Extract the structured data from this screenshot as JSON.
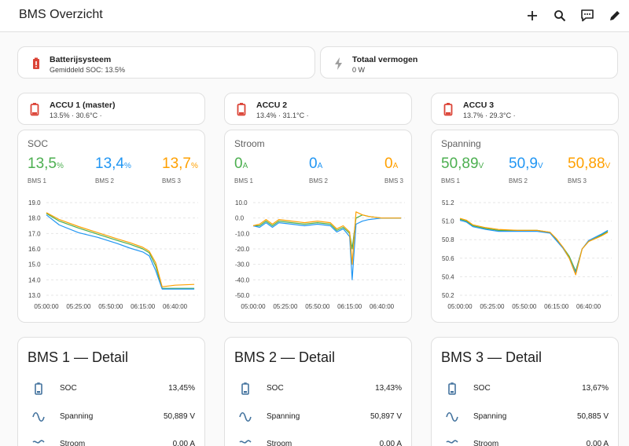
{
  "header": {
    "title": "BMS Overzicht",
    "actions": [
      {
        "icon": "plus-icon"
      },
      {
        "icon": "search-icon"
      },
      {
        "icon": "assist-icon"
      },
      {
        "icon": "pencil-icon"
      }
    ]
  },
  "colors": {
    "bms1": "#4caf50",
    "bms2": "#2196f3",
    "bms3": "#ffa000",
    "battery_icon": "#db4437",
    "detail_icon": "#44739e"
  },
  "summary": [
    {
      "name": "Batterijsysteem",
      "sub": "Gemiddeld SOC: 13.5%",
      "icon": "battery-icon"
    },
    {
      "name": "Totaal vermogen",
      "sub": "0 W",
      "icon": "flash-icon"
    }
  ],
  "accus": [
    {
      "name": "ACCU 1 (master)",
      "sub": "13.5% · 30.6°C ·",
      "icon": "battery-icon"
    },
    {
      "name": "ACCU 2",
      "sub": "13.4% · 31.1°C ·",
      "icon": "battery-icon"
    },
    {
      "name": "ACCU 3",
      "sub": "13.7% · 29.3°C ·",
      "icon": "battery-icon"
    }
  ],
  "charts": [
    {
      "title": "SOC",
      "stats": [
        {
          "value": "13,5",
          "unit": "%",
          "label": "BMS 1"
        },
        {
          "value": "13,4",
          "unit": "%",
          "label": "BMS 2"
        },
        {
          "value": "13,7",
          "unit": "%",
          "label": "BMS 3"
        }
      ]
    },
    {
      "title": "Stroom",
      "stats": [
        {
          "value": "0",
          "unit": "A",
          "label": "BMS 1"
        },
        {
          "value": "0",
          "unit": "A",
          "label": "BMS 2"
        },
        {
          "value": "0",
          "unit": "A",
          "label": "BMS 3"
        }
      ]
    },
    {
      "title": "Spanning",
      "stats": [
        {
          "value": "50,89",
          "unit": "V",
          "label": "BMS 1"
        },
        {
          "value": "50,9",
          "unit": "V",
          "label": "BMS 2"
        },
        {
          "value": "50,88",
          "unit": "V",
          "label": "BMS 3"
        }
      ]
    }
  ],
  "chart_data": [
    {
      "type": "line",
      "title": "SOC",
      "x": [
        "05:00:00",
        "05:10:00",
        "05:25:00",
        "05:40:00",
        "05:55:00",
        "06:05:00",
        "06:15:00",
        "06:20:00",
        "06:25:00",
        "06:30:00",
        "06:40:00",
        "06:55:00"
      ],
      "x_ticks": [
        "05:00:00",
        "05:25:00",
        "05:50:00",
        "06:15:00",
        "06:40:00"
      ],
      "y_ticks": [
        "19.0",
        "18.0",
        "17.0",
        "16.0",
        "15.0",
        "14.0",
        "13.0"
      ],
      "ylim": [
        13,
        19
      ],
      "series": [
        {
          "name": "BMS 1",
          "values": [
            18.3,
            17.8,
            17.35,
            16.95,
            16.55,
            16.3,
            16.0,
            15.75,
            14.9,
            13.45,
            13.45,
            13.45
          ]
        },
        {
          "name": "BMS 2",
          "values": [
            18.2,
            17.55,
            17.05,
            16.75,
            16.35,
            16.05,
            15.8,
            15.55,
            14.6,
            13.4,
            13.4,
            13.4
          ]
        },
        {
          "name": "BMS 3",
          "values": [
            18.35,
            17.9,
            17.45,
            17.05,
            16.65,
            16.4,
            16.1,
            15.85,
            15.1,
            13.55,
            13.65,
            13.7
          ]
        }
      ]
    },
    {
      "type": "line",
      "title": "Stroom",
      "x": [
        "05:00:00",
        "05:05:00",
        "05:10:00",
        "05:15:00",
        "05:20:00",
        "05:30:00",
        "05:40:00",
        "05:50:00",
        "06:00:00",
        "06:05:00",
        "06:10:00",
        "06:15:00",
        "06:17:00",
        "06:20:00",
        "06:25:00",
        "06:30:00",
        "06:40:00",
        "06:55:00"
      ],
      "x_ticks": [
        "05:00:00",
        "05:25:00",
        "05:50:00",
        "06:15:00",
        "06:40:00"
      ],
      "y_ticks": [
        "10.0",
        "0.0",
        "-10.0",
        "-20.0",
        "-30.0",
        "-40.0",
        "-50.0"
      ],
      "ylim": [
        -50,
        10
      ],
      "series": [
        {
          "name": "BMS 1",
          "values": [
            -5,
            -5,
            -2,
            -5,
            -2,
            -3,
            -4,
            -3,
            -4,
            -8,
            -6,
            -10,
            -20,
            0,
            2,
            1,
            0,
            0
          ]
        },
        {
          "name": "BMS 2",
          "values": [
            -5,
            -6,
            -3,
            -6,
            -3,
            -4,
            -5,
            -4,
            -5,
            -9,
            -7,
            -12,
            -40,
            -4,
            -2,
            -1,
            0,
            0
          ]
        },
        {
          "name": "BMS 3",
          "values": [
            -5,
            -4,
            -1,
            -4,
            -1,
            -2,
            -3,
            -2,
            -3,
            -7,
            -5,
            -9,
            -30,
            4,
            2,
            1,
            0,
            0
          ]
        }
      ]
    },
    {
      "type": "line",
      "title": "Spanning",
      "x": [
        "05:00:00",
        "05:05:00",
        "05:10:00",
        "05:20:00",
        "05:30:00",
        "05:45:00",
        "06:00:00",
        "06:10:00",
        "06:15:00",
        "06:20:00",
        "06:25:00",
        "06:30:00",
        "06:35:00",
        "06:40:00",
        "06:50:00",
        "06:55:00"
      ],
      "x_ticks": [
        "05:00:00",
        "05:25:00",
        "05:50:00",
        "06:15:00",
        "06:40:00"
      ],
      "y_ticks": [
        "51.2",
        "51.0",
        "50.8",
        "50.6",
        "50.4",
        "50.2"
      ],
      "ylim": [
        50.2,
        51.2
      ],
      "series": [
        {
          "name": "BMS 1",
          "values": [
            51.02,
            51.0,
            50.95,
            50.92,
            50.9,
            50.9,
            50.9,
            50.88,
            50.8,
            50.72,
            50.62,
            50.46,
            50.7,
            50.78,
            50.85,
            50.89
          ]
        },
        {
          "name": "BMS 2",
          "values": [
            51.01,
            50.99,
            50.94,
            50.91,
            50.89,
            50.89,
            50.89,
            50.87,
            50.79,
            50.71,
            50.6,
            50.44,
            50.7,
            50.79,
            50.86,
            50.9
          ]
        },
        {
          "name": "BMS 3",
          "values": [
            51.03,
            51.01,
            50.96,
            50.93,
            50.91,
            50.9,
            50.9,
            50.88,
            50.81,
            50.72,
            50.6,
            50.42,
            50.7,
            50.78,
            50.84,
            50.88
          ]
        }
      ]
    }
  ],
  "details": [
    {
      "title": "BMS 1 — Detail",
      "rows": [
        {
          "icon": "battery-outline-icon",
          "label": "SOC",
          "value": "13,45%"
        },
        {
          "icon": "sine-wave-icon",
          "label": "Spanning",
          "value": "50,889 V"
        },
        {
          "icon": "current-icon",
          "label": "Stroom",
          "value": "0,00 A"
        }
      ]
    },
    {
      "title": "BMS 2 — Detail",
      "rows": [
        {
          "icon": "battery-outline-icon",
          "label": "SOC",
          "value": "13,43%"
        },
        {
          "icon": "sine-wave-icon",
          "label": "Spanning",
          "value": "50,897 V"
        },
        {
          "icon": "current-icon",
          "label": "Stroom",
          "value": "0,00 A"
        }
      ]
    },
    {
      "title": "BMS 3 — Detail",
      "rows": [
        {
          "icon": "battery-outline-icon",
          "label": "SOC",
          "value": "13,67%"
        },
        {
          "icon": "sine-wave-icon",
          "label": "Spanning",
          "value": "50,885 V"
        },
        {
          "icon": "current-icon",
          "label": "Stroom",
          "value": "0,00 A"
        }
      ]
    }
  ]
}
